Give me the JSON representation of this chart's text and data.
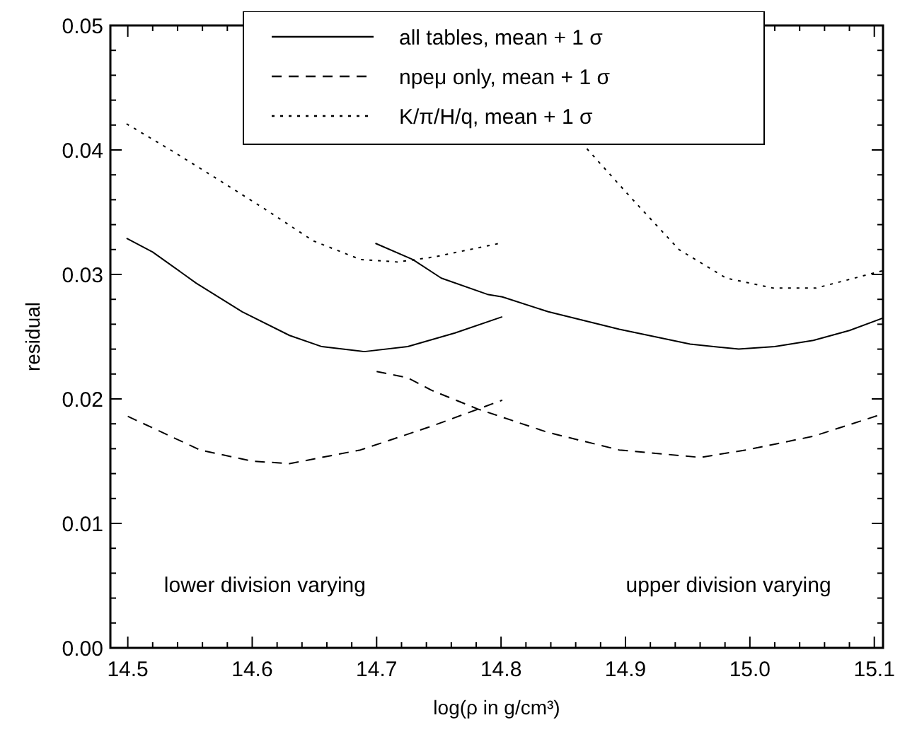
{
  "chart_data": {
    "type": "line",
    "xlabel": "log(ρ in g/cm³)",
    "ylabel": "residual",
    "xlim": [
      14.486,
      15.107
    ],
    "ylim": [
      0,
      0.05
    ],
    "xticks": [
      {
        "value": 14.5,
        "label": "14.5"
      },
      {
        "value": 14.52,
        "label": null
      },
      {
        "value": 14.54,
        "label": null
      },
      {
        "value": 14.56,
        "label": null
      },
      {
        "value": 14.58,
        "label": null
      },
      {
        "value": 14.6,
        "label": "14.6"
      },
      {
        "value": 14.62,
        "label": null
      },
      {
        "value": 14.64,
        "label": null
      },
      {
        "value": 14.66,
        "label": null
      },
      {
        "value": 14.68,
        "label": null
      },
      {
        "value": 14.7,
        "label": "14.7"
      },
      {
        "value": 14.72,
        "label": null
      },
      {
        "value": 14.74,
        "label": null
      },
      {
        "value": 14.76,
        "label": null
      },
      {
        "value": 14.78,
        "label": null
      },
      {
        "value": 14.8,
        "label": "14.8"
      },
      {
        "value": 14.82,
        "label": null
      },
      {
        "value": 14.84,
        "label": null
      },
      {
        "value": 14.86,
        "label": null
      },
      {
        "value": 14.88,
        "label": null
      },
      {
        "value": 14.9,
        "label": "14.9"
      },
      {
        "value": 14.92,
        "label": null
      },
      {
        "value": 14.94,
        "label": null
      },
      {
        "value": 14.96,
        "label": null
      },
      {
        "value": 14.98,
        "label": null
      },
      {
        "value": 15.0,
        "label": "15.0"
      },
      {
        "value": 15.02,
        "label": null
      },
      {
        "value": 15.04,
        "label": null
      },
      {
        "value": 15.06,
        "label": null
      },
      {
        "value": 15.08,
        "label": null
      },
      {
        "value": 15.1,
        "label": "15.1"
      }
    ],
    "yticks": [
      {
        "value": 0,
        "label": "0.00"
      },
      {
        "value": 0.002,
        "label": null
      },
      {
        "value": 0.004,
        "label": null
      },
      {
        "value": 0.006,
        "label": null
      },
      {
        "value": 0.008,
        "label": null
      },
      {
        "value": 0.01,
        "label": "0.01"
      },
      {
        "value": 0.012,
        "label": null
      },
      {
        "value": 0.014,
        "label": null
      },
      {
        "value": 0.016,
        "label": null
      },
      {
        "value": 0.018,
        "label": null
      },
      {
        "value": 0.02,
        "label": "0.02"
      },
      {
        "value": 0.022,
        "label": null
      },
      {
        "value": 0.024,
        "label": null
      },
      {
        "value": 0.026,
        "label": null
      },
      {
        "value": 0.028,
        "label": null
      },
      {
        "value": 0.03,
        "label": "0.03"
      },
      {
        "value": 0.032,
        "label": null
      },
      {
        "value": 0.034,
        "label": null
      },
      {
        "value": 0.036,
        "label": null
      },
      {
        "value": 0.038,
        "label": null
      },
      {
        "value": 0.04,
        "label": "0.04"
      },
      {
        "value": 0.042,
        "label": null
      },
      {
        "value": 0.044,
        "label": null
      },
      {
        "value": 0.046,
        "label": null
      },
      {
        "value": 0.048,
        "label": null
      },
      {
        "value": 0.05,
        "label": "0.05"
      }
    ],
    "legend": "top",
    "grid": false,
    "marker": "none",
    "annotations": [
      "lower division varying",
      "upper division varying"
    ],
    "series": [
      {
        "name": "all tables, mean + 1 σ",
        "color": "#000000",
        "line_style": "solid",
        "x": [
          14.499,
          14.52,
          14.555,
          14.592,
          14.63,
          14.656,
          14.69,
          14.725,
          14.763,
          14.801,
          14.8,
          14.699,
          14.729,
          14.752,
          14.789,
          14.801,
          14.838,
          14.895,
          14.952,
          14.991,
          15.02,
          15.051,
          15.08,
          15.107
        ],
        "values": [
          0.0329,
          0.0318,
          0.0293,
          0.027,
          0.0251,
          0.0242,
          0.0238,
          0.0242,
          0.0253,
          0.0266,
          null,
          0.0325,
          0.0312,
          0.0297,
          0.0284,
          0.0282,
          0.027,
          0.0256,
          0.0244,
          0.024,
          0.0242,
          0.0247,
          0.0255,
          0.0265
        ]
      },
      {
        "name": "npeμ only, mean + 1 σ",
        "color": "#000000",
        "line_style": "dashed",
        "x": [
          14.5,
          14.558,
          14.6,
          14.63,
          14.687,
          14.744,
          14.801,
          14.8,
          14.7,
          14.725,
          14.744,
          14.781,
          14.838,
          14.895,
          14.96,
          14.997,
          15.051,
          15.107
        ],
        "values": [
          0.0186,
          0.0159,
          0.015,
          0.0148,
          0.0159,
          0.0178,
          0.0199,
          null,
          0.0222,
          0.0217,
          0.0207,
          0.0192,
          0.0173,
          0.0159,
          0.0153,
          0.0159,
          0.017,
          0.0188
        ]
      },
      {
        "name": "K/π/H/q, mean + 1 σ",
        "color": "#000000",
        "line_style": "dotted",
        "x": [
          14.499,
          14.536,
          14.573,
          14.611,
          14.649,
          14.687,
          14.717,
          14.746,
          14.799,
          14.8,
          14.869,
          14.905,
          14.943,
          14.981,
          15.019,
          15.053,
          15.107
        ],
        "values": [
          0.0421,
          0.0399,
          0.0376,
          0.0352,
          0.0327,
          0.0312,
          0.031,
          0.0314,
          0.0325,
          null,
          0.0401,
          0.0361,
          0.032,
          0.0297,
          0.0289,
          0.0289,
          0.0303
        ]
      }
    ]
  }
}
